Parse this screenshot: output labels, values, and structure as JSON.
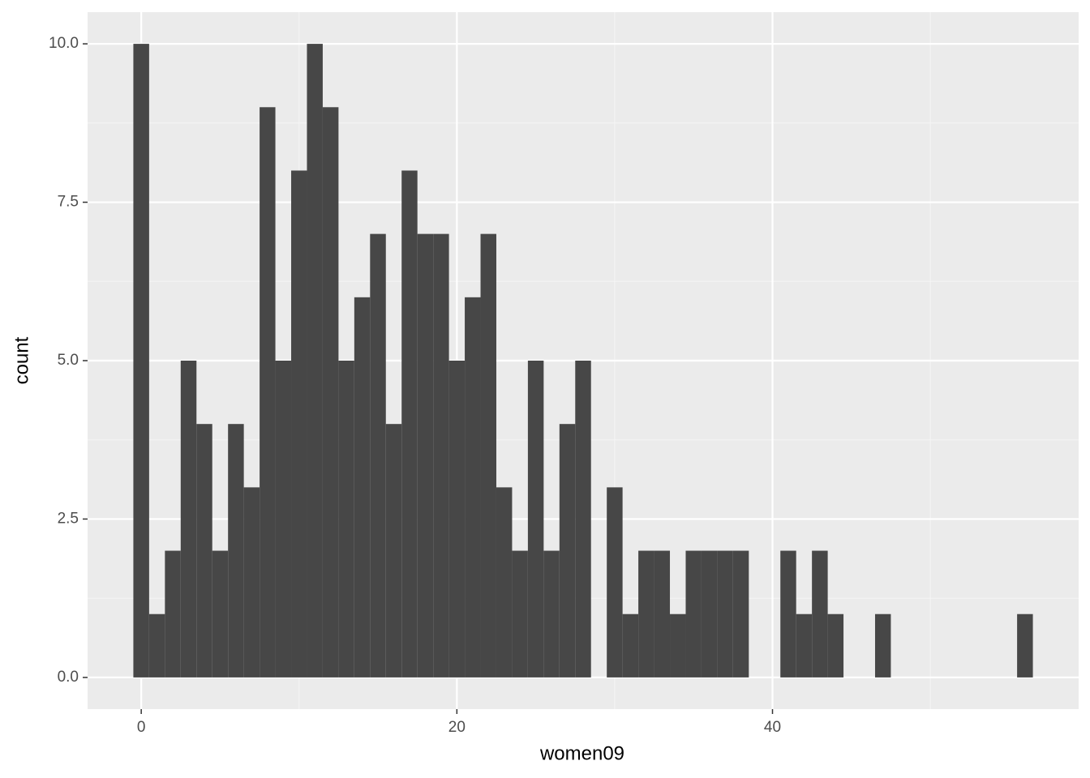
{
  "chart_data": {
    "type": "histogram",
    "x_label": "women09",
    "y_label": "count",
    "bins": [
      -0.5,
      0.5,
      1.5,
      2.5,
      3.5,
      4.5,
      5.5,
      6.5,
      7.5,
      8.5,
      9.5,
      10.5,
      11.5,
      12.5,
      13.5,
      14.5,
      15.5,
      16.5,
      17.5,
      18.5,
      19.5,
      20.5,
      21.5,
      22.5,
      23.5,
      24.5,
      25.5,
      26.5,
      27.5,
      28.5,
      29.5,
      30.5,
      31.5,
      32.5,
      33.5,
      34.5,
      35.5,
      36.5,
      37.5,
      38.5,
      39.5,
      40.5,
      41.5,
      42.5,
      43.5,
      44.5,
      45.5,
      46.5,
      47.5,
      48.5,
      49.5,
      50.5,
      51.5,
      52.5,
      53.5,
      54.5,
      55.5,
      56.5
    ],
    "values": [
      10,
      1,
      2,
      5,
      4,
      2,
      4,
      3,
      9,
      5,
      8,
      10,
      9,
      5,
      6,
      7,
      4,
      8,
      7,
      7,
      5,
      6,
      7,
      3,
      2,
      5,
      2,
      4,
      5,
      0,
      3,
      1,
      2,
      2,
      1,
      2,
      2,
      2,
      2,
      0,
      0,
      2,
      1,
      2,
      1,
      0,
      0,
      1,
      0,
      0,
      0,
      0,
      0,
      0,
      0,
      0,
      1
    ],
    "color": "#474747",
    "xlim": [
      -3.4,
      59.4
    ],
    "ylim": [
      -0.5,
      10.5
    ],
    "xticks": [
      0,
      20,
      40
    ],
    "yticks": [
      {
        "value": 0,
        "label": "0.0"
      },
      {
        "value": 2.5,
        "label": "2.5"
      },
      {
        "value": 5,
        "label": "5.0"
      },
      {
        "value": 7.5,
        "label": "7.5"
      },
      {
        "value": 10,
        "label": "10.0"
      }
    ],
    "x_minor_ticks": [
      10,
      30,
      50
    ],
    "y_minor_ticks": [
      1.25,
      3.75,
      6.25,
      8.75
    ],
    "grid": true
  }
}
